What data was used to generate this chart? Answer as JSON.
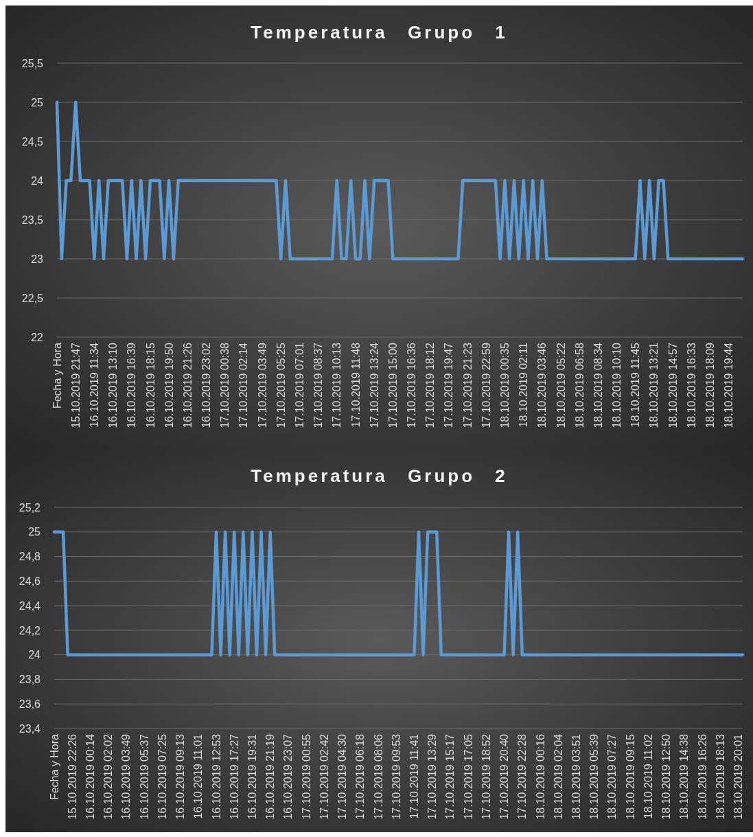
{
  "chart_data": [
    {
      "type": "line",
      "title": "Temperatura Grupo 1",
      "categories": [
        "Fecha y Hora",
        null,
        null,
        null,
        "15.10.2019 21:47",
        null,
        null,
        null,
        "16.10.2019 11:34",
        null,
        null,
        null,
        "16.10.2019 13:10",
        null,
        null,
        null,
        "16.10.2019 16:39",
        null,
        null,
        null,
        "16.10.2019 18:15",
        null,
        null,
        null,
        "16.10.2019 19:50",
        null,
        null,
        null,
        "16.10.2019 21:26",
        null,
        null,
        null,
        "16.10.2019 23:02",
        null,
        null,
        null,
        "17.10.2019 00:38",
        null,
        null,
        null,
        "17.10.2019 02:14",
        null,
        null,
        null,
        "17.10.2019 03:49",
        null,
        null,
        null,
        "17.10.2019 05:25",
        null,
        null,
        null,
        "17.10.2019 07:01",
        null,
        null,
        null,
        "17.10.2019 08:37",
        null,
        null,
        null,
        "17.10.2019 10:13",
        null,
        null,
        null,
        "17.10.2019 11:48",
        null,
        null,
        null,
        "17.10.2019 13:24",
        null,
        null,
        null,
        "17.10.2019 15:00",
        null,
        null,
        null,
        "17.10.2019 16:36",
        null,
        null,
        null,
        "17.10.2019 18:12",
        null,
        null,
        null,
        "17.10.2019 19:47",
        null,
        null,
        null,
        "17.10.2019 21:23",
        null,
        null,
        null,
        "17.10.2019 22:59",
        null,
        null,
        null,
        "18.10.2019 00:35",
        null,
        null,
        null,
        "18.10.2019 02:11",
        null,
        null,
        null,
        "18.10.2019 03:46",
        null,
        null,
        null,
        "18.10.2019 05:22",
        null,
        null,
        null,
        "18.10.2019 06:58",
        null,
        null,
        null,
        "18.10.2019 08:34",
        null,
        null,
        null,
        "18.10.2019 10:10",
        null,
        null,
        null,
        "18.10.2019 11:45",
        null,
        null,
        null,
        "18.10.2019 13:21",
        null,
        null,
        null,
        "18.10.2019 14:57",
        null,
        null,
        null,
        "18.10.2019 16:33",
        null,
        null,
        null,
        "18.10.2019 18:09",
        null,
        null,
        null,
        "18.10.2019 19:44",
        null,
        null,
        null
      ],
      "values": [
        25,
        23,
        24,
        24,
        25,
        24,
        24,
        24,
        23,
        24,
        23,
        24,
        24,
        24,
        24,
        23,
        24,
        23,
        24,
        23,
        24,
        24,
        24,
        23,
        24,
        23,
        24,
        24,
        24,
        24,
        24,
        24,
        24,
        24,
        24,
        24,
        24,
        24,
        24,
        24,
        24,
        24,
        24,
        24,
        24,
        24,
        24,
        24,
        23,
        24,
        23,
        23,
        23,
        23,
        23,
        23,
        23,
        23,
        23,
        23,
        24,
        23,
        23,
        24,
        23,
        23,
        24,
        23,
        24,
        24,
        24,
        24,
        23,
        23,
        23,
        23,
        23,
        23,
        23,
        23,
        23,
        23,
        23,
        23,
        23,
        23,
        23,
        24,
        24,
        24,
        24,
        24,
        24,
        24,
        24,
        23,
        24,
        23,
        24,
        23,
        24,
        23,
        24,
        23,
        24,
        23,
        23,
        23,
        23,
        23,
        23,
        23,
        23,
        23,
        23,
        23,
        23,
        23,
        23,
        23,
        23,
        23,
        23,
        23,
        23,
        24,
        23,
        24,
        23,
        24,
        24,
        23,
        23,
        23,
        23,
        23,
        23,
        23,
        23,
        23,
        23,
        23,
        23,
        23,
        23,
        23,
        23,
        23
      ],
      "color": "#5b9bd5",
      "ylim": [
        22,
        25.5
      ],
      "yticks": [
        22,
        {
          "value": 22.5,
          "label": "22,5"
        },
        23,
        {
          "value": 23.5,
          "label": "23,5"
        },
        24,
        {
          "value": 24.5,
          "label": "24,5"
        },
        25,
        {
          "value": 25.5,
          "label": "25,5"
        }
      ],
      "grid": "y"
    },
    {
      "type": "line",
      "title": "Temperatura Grupo 2",
      "categories": [
        "Fecha y Hora",
        null,
        null,
        null,
        "15.10.2019 22:26",
        null,
        null,
        null,
        "16.10.2019 00:14",
        null,
        null,
        null,
        "16.10.2019 02:02",
        null,
        null,
        null,
        "16.10.2019 03:49",
        null,
        null,
        null,
        "16.10.2019 05:37",
        null,
        null,
        null,
        "16.10.2019 07:25",
        null,
        null,
        null,
        "16.10.2019 09:13",
        null,
        null,
        null,
        "16.10.2019 11:01",
        null,
        null,
        null,
        "16.10.2019 12:53",
        null,
        null,
        null,
        "16.10.2019 17:27",
        null,
        null,
        null,
        "16.10.2019 19:31",
        null,
        null,
        null,
        "16.10.2019 21:19",
        null,
        null,
        null,
        "16.10.2019 23:07",
        null,
        null,
        null,
        "17.10.2019 00:55",
        null,
        null,
        null,
        "17.10.2019 02:42",
        null,
        null,
        null,
        "17.10.2019 04:30",
        null,
        null,
        null,
        "17.10.2019 06:18",
        null,
        null,
        null,
        "17.10.2019 08:06",
        null,
        null,
        null,
        "17.10.2019 09:53",
        null,
        null,
        null,
        "17.10.2019 11:41",
        null,
        null,
        null,
        "17.10.2019 13:29",
        null,
        null,
        null,
        "17.10.2019 15:17",
        null,
        null,
        null,
        "17.10.2019 17:05",
        null,
        null,
        null,
        "17.10.2019 18:52",
        null,
        null,
        null,
        "17.10.2019 20:40",
        null,
        null,
        null,
        "17.10.2019 22:28",
        null,
        null,
        null,
        "18.10.2019 00:16",
        null,
        null,
        null,
        "18.10.2019 02:04",
        null,
        null,
        null,
        "18.10.2019 03:51",
        null,
        null,
        null,
        "18.10.2019 05:39",
        null,
        null,
        null,
        "18.10.2019 07:27",
        null,
        null,
        null,
        "18.10.2019 09:15",
        null,
        null,
        null,
        "18.10.2019 11:02",
        null,
        null,
        null,
        "18.10.2019 12:50",
        null,
        null,
        null,
        "18.10.2019 14:38",
        null,
        null,
        null,
        "18.10.2019 16:26",
        null,
        null,
        null,
        "18.10.2019 18:13",
        null,
        null,
        null,
        "18.10.2019 20:01",
        null
      ],
      "values": [
        25,
        25,
        25,
        24,
        24,
        24,
        24,
        24,
        24,
        24,
        24,
        24,
        24,
        24,
        24,
        24,
        24,
        24,
        24,
        24,
        24,
        24,
        24,
        24,
        24,
        24,
        24,
        24,
        24,
        24,
        24,
        24,
        24,
        24,
        24,
        24,
        25,
        24,
        25,
        24,
        25,
        24,
        25,
        24,
        25,
        24,
        25,
        24,
        25,
        24,
        24,
        24,
        24,
        24,
        24,
        24,
        24,
        24,
        24,
        24,
        24,
        24,
        24,
        24,
        24,
        24,
        24,
        24,
        24,
        24,
        24,
        24,
        24,
        24,
        24,
        24,
        24,
        24,
        24,
        24,
        24,
        25,
        24,
        25,
        25,
        25,
        24,
        24,
        24,
        24,
        24,
        24,
        24,
        24,
        24,
        24,
        24,
        24,
        24,
        24,
        24,
        25,
        24,
        25,
        24,
        24,
        24,
        24,
        24,
        24,
        24,
        24,
        24,
        24,
        24,
        24,
        24,
        24,
        24,
        24,
        24,
        24,
        24,
        24,
        24,
        24,
        24,
        24,
        24,
        24,
        24,
        24,
        24,
        24,
        24,
        24,
        24,
        24,
        24,
        24,
        24,
        24,
        24,
        24,
        24,
        24,
        24,
        24,
        24,
        24,
        24,
        24,
        24,
        24
      ],
      "color": "#5b9bd5",
      "ylim": [
        23.4,
        25.2
      ],
      "yticks": [
        {
          "value": 23.4,
          "label": "23,4"
        },
        {
          "value": 23.6,
          "label": "23,6"
        },
        {
          "value": 23.8,
          "label": "23,8"
        },
        24,
        {
          "value": 24.2,
          "label": "24,2"
        },
        {
          "value": 24.4,
          "label": "24,4"
        },
        {
          "value": 24.6,
          "label": "24,6"
        },
        {
          "value": 24.8,
          "label": "24,8"
        },
        25,
        {
          "value": 25.2,
          "label": "25,2"
        }
      ],
      "grid": "y"
    }
  ]
}
